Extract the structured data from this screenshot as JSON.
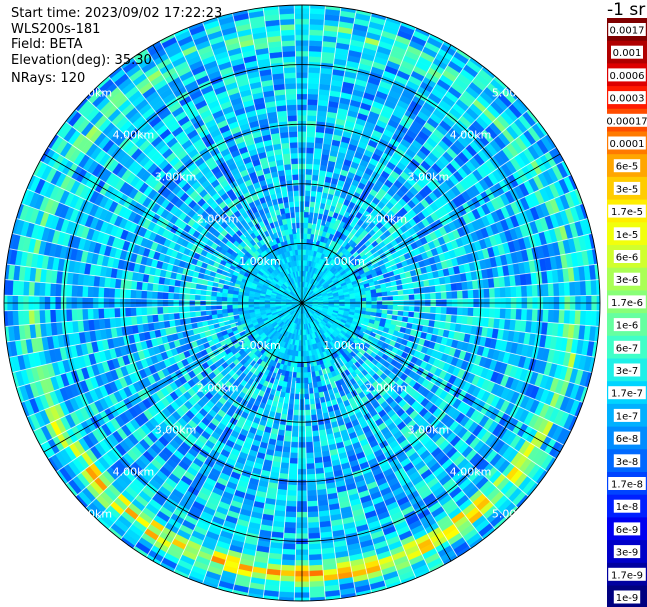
{
  "info": {
    "start_time": "Start time: 2023/09/02 17:22:23",
    "instrument": "WLS200s-181",
    "field": "Field: BETA",
    "elevation": "Elevation(deg): 35.30",
    "nrays": "NRays: 120"
  },
  "colorbar": {
    "unit": "-1 sr",
    "ticks": [
      "0.0017",
      "0.001",
      "0.0006",
      "0.0003",
      "0.00017",
      "0.0001",
      "6e-5",
      "3e-5",
      "1.7e-5",
      "1e-5",
      "6e-6",
      "3e-6",
      "1.7e-6",
      "1e-6",
      "6e-7",
      "3e-7",
      "1.7e-7",
      "1e-7",
      "6e-8",
      "3e-8",
      "1.7e-8",
      "1e-8",
      "6e-9",
      "3e-9",
      "1.7e-9",
      "1e-9"
    ],
    "colors": [
      "#800000",
      "#b00000",
      "#dd0000",
      "#ff1a00",
      "#ff4d00",
      "#ff7a00",
      "#ffa600",
      "#ffcc00",
      "#ffee00",
      "#f2ff0c",
      "#d0ff2e",
      "#aaff55",
      "#88ff77",
      "#66ffa0",
      "#40ffc8",
      "#1ef0e8",
      "#00d4ff",
      "#00b0ff",
      "#008cff",
      "#0068ff",
      "#0044ff",
      "#0020ff",
      "#0000f0",
      "#0000c8",
      "#0000a0",
      "#000080"
    ]
  },
  "chart_data": {
    "type": "heatmap",
    "projection": "polar-ppi",
    "rays": 120,
    "range_rings_km": [
      1,
      2,
      3,
      4,
      5
    ],
    "range_labels": [
      "1.00km",
      "2.00km",
      "3.00km",
      "4.00km",
      "5.00km"
    ],
    "max_range_km": 5.0,
    "field": "BETA",
    "elevation_deg": 35.3,
    "colorscale": "jet-log",
    "color_range": [
      1e-09,
      0.0017
    ],
    "typical_beta": 1e-07,
    "aerosol_band": {
      "range_km": [
        4.35,
        4.75
      ],
      "beta_peak": 3e-05
    }
  }
}
